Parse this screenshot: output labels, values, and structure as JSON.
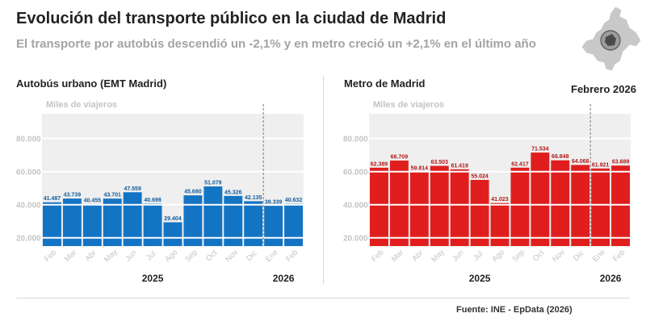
{
  "header": {
    "title": "Evolución del transporte público en la ciudad de Madrid",
    "subtitle": "El transporte por autobús descendió un -2,1% y en metro creció un +2,1% en el último año"
  },
  "period": "Febrero 2026",
  "source": "Fuente: INE - EpData (2026)",
  "icons": {
    "map": "madrid-region-map-icon"
  },
  "chart_data": [
    {
      "type": "bar",
      "title": "Autobús urbano (EMT Madrid)",
      "ylabel": "Miles de viajeros",
      "color": "#1474c4",
      "categories": [
        "Feb",
        "Mar",
        "Abr",
        "May",
        "Jun",
        "Jul",
        "Ago",
        "Sep",
        "Oct",
        "Nov",
        "Dic",
        "Ene",
        "Feb"
      ],
      "values": [
        41487,
        43739,
        40455,
        43701,
        47559,
        40698,
        29404,
        45680,
        51079,
        45326,
        42135,
        39339,
        40632
      ],
      "value_labels": [
        "41.487",
        "43.739",
        "40.455",
        "43.701",
        "47.559",
        "40.698",
        "29.404",
        "45.680",
        "51.079",
        "45.326",
        "42.135",
        "39.339",
        "40.632"
      ],
      "yticks": [
        20000,
        40000,
        60000,
        80000
      ],
      "ytick_labels": [
        "20.000",
        "40.000",
        "60.000",
        "80.000"
      ],
      "ylim": [
        15000,
        95000
      ],
      "years": [
        {
          "label": "2025",
          "from": 0,
          "to": 10
        },
        {
          "label": "2026",
          "from": 11,
          "to": 12
        }
      ],
      "grid": true
    },
    {
      "type": "bar",
      "title": "Metro de Madrid",
      "ylabel": "Miles de viajeros",
      "color": "#e01e1e",
      "categories": [
        "Feb",
        "Mar",
        "Abr",
        "May",
        "Jun",
        "Jul",
        "Ago",
        "Sep",
        "Oct",
        "Nov",
        "Dic",
        "Ene",
        "Feb"
      ],
      "values": [
        62389,
        66709,
        59814,
        63503,
        61419,
        55024,
        41023,
        62417,
        71534,
        66848,
        64068,
        61921,
        63689
      ],
      "value_labels": [
        "62.389",
        "66.709",
        "59.814",
        "63.503",
        "61.419",
        "55.024",
        "41.023",
        "62.417",
        "71.534",
        "66.848",
        "64.068",
        "61.921",
        "63.689"
      ],
      "yticks": [
        20000,
        40000,
        60000,
        80000
      ],
      "ytick_labels": [
        "20.000",
        "40.000",
        "60.000",
        "80.000"
      ],
      "ylim": [
        15000,
        95000
      ],
      "years": [
        {
          "label": "2025",
          "from": 0,
          "to": 10
        },
        {
          "label": "2026",
          "from": 11,
          "to": 12
        }
      ],
      "grid": true
    }
  ]
}
